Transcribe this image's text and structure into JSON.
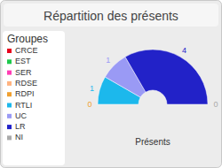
{
  "chart_data": {
    "type": "pie",
    "title": "Répartition des présents",
    "legend_title": "Groupes",
    "annotation": "Présents",
    "categories": [
      "CRCE",
      "EST",
      "SER",
      "RDSE",
      "RDPI",
      "RTLI",
      "UC",
      "LR",
      "NI"
    ],
    "values": [
      0,
      0,
      0,
      0,
      0,
      1,
      1,
      4,
      0
    ],
    "value_labels": [
      null,
      null,
      null,
      null,
      "0",
      "1",
      "1",
      "4",
      "0"
    ],
    "colors": [
      "#e8001c",
      "#1ec94c",
      "#ff3cb4",
      "#ffb380",
      "#f0a030",
      "#1cb8ec",
      "#9a9af5",
      "#2222c8",
      "#aaaaaa"
    ],
    "data_labels": true,
    "legend": "left"
  }
}
